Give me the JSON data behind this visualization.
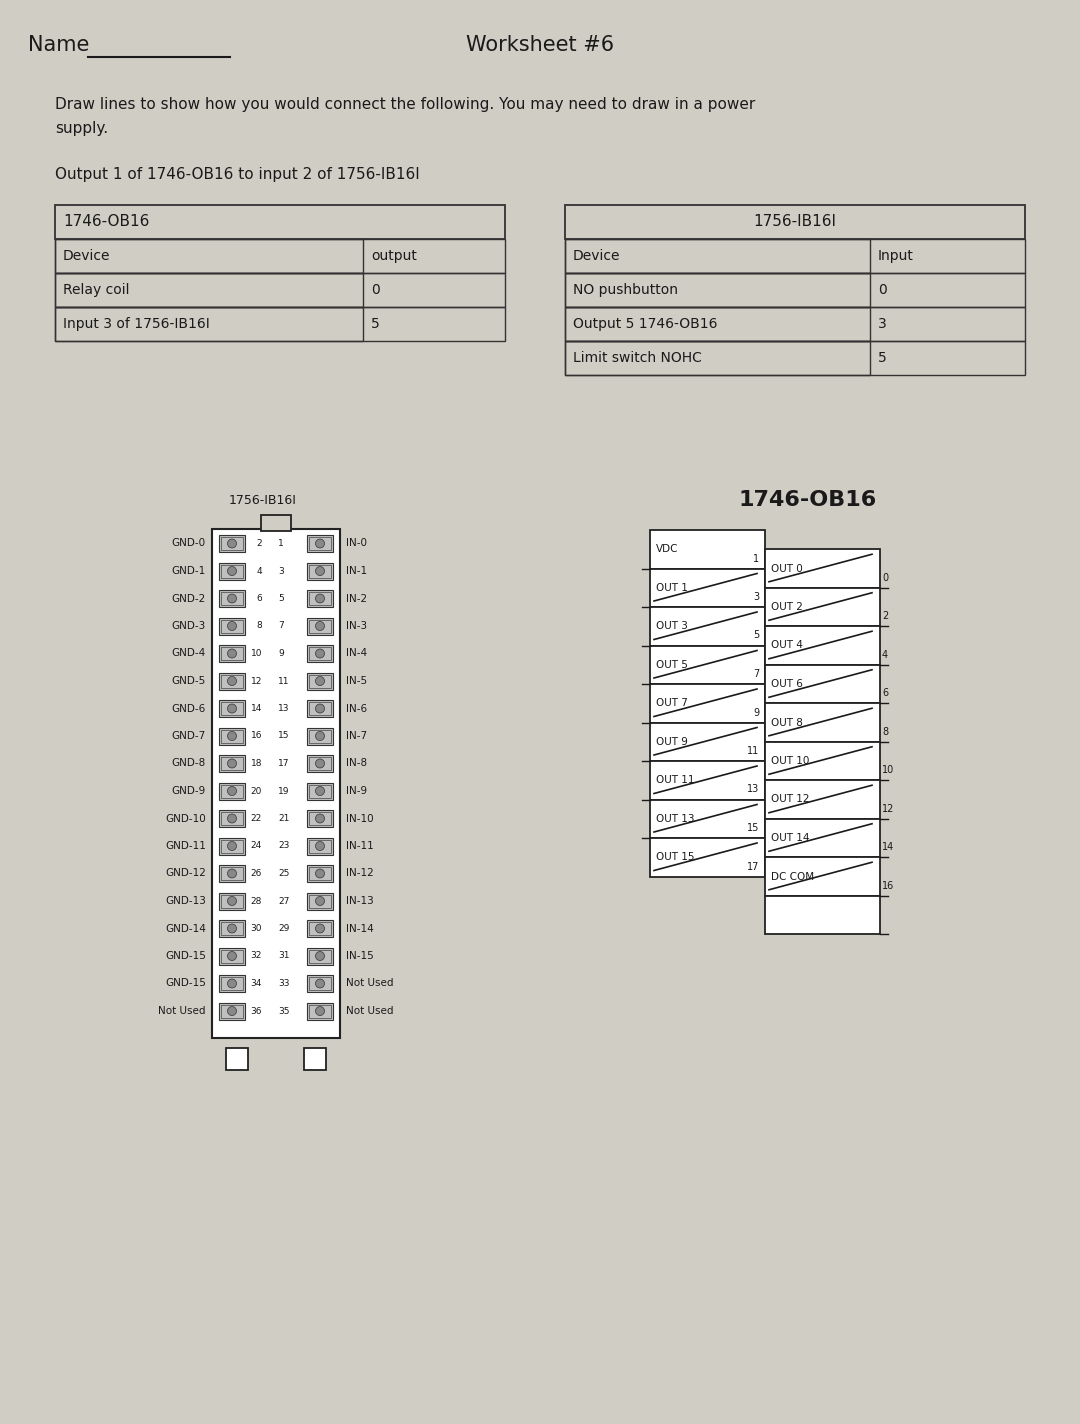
{
  "bg_color": "#d0cdc5",
  "title": "Worksheet #6",
  "name_label": "Name",
  "instruction_line1": "Draw lines to show how you would connect the following. You may need to draw in a power",
  "instruction_line2": "supply.",
  "task": "Output 1 of 1746-OB16 to input 2 of 1756-IB16I",
  "table1_title": "1746-OB16",
  "table1_col1": "Device",
  "table1_col2": "output",
  "table1_rows": [
    [
      "Relay coil",
      "0"
    ],
    [
      "Input 3 of 1756-IB16I",
      "5"
    ]
  ],
  "table2_title": "1756-IB16I",
  "table2_col1": "Device",
  "table2_col2": "Input",
  "table2_rows": [
    [
      "NO pushbutton",
      "0"
    ],
    [
      "Output 5 1746-OB16",
      "3"
    ],
    [
      "Limit switch NOHC",
      "5"
    ]
  ],
  "diag1_title": "1756-IB16I",
  "diag2_title": "1746-OB16",
  "gnd_labels": [
    "GND-0",
    "GND-1",
    "GND-2",
    "GND-3",
    "GND-4",
    "GND-5",
    "GND-6",
    "GND-7",
    "GND-8",
    "GND-9",
    "GND-10",
    "GND-11",
    "GND-12",
    "GND-13",
    "GND-14",
    "GND-15",
    "GND-15",
    "Not Used"
  ],
  "in_labels": [
    "IN-0",
    "IN-1",
    "IN-2",
    "IN-3",
    "IN-4",
    "IN-5",
    "IN-6",
    "IN-7",
    "IN-8",
    "IN-9",
    "IN-10",
    "IN-11",
    "IN-12",
    "IN-13",
    "IN-14",
    "IN-15",
    "Not Used",
    "Not Used"
  ],
  "pin_left": [
    "2",
    "4",
    "6",
    "8",
    "10",
    "12",
    "14",
    "16",
    "18",
    "20",
    "22",
    "24",
    "26",
    "28",
    "30",
    "32",
    "34",
    "36"
  ],
  "pin_right": [
    "1",
    "3",
    "5",
    "7",
    "9",
    "11",
    "13",
    "15",
    "17",
    "19",
    "21",
    "23",
    "25",
    "27",
    "29",
    "31",
    "33",
    "35"
  ],
  "ob16_left_labels": [
    "VDC",
    "OUT 1",
    "OUT 3",
    "OUT 5",
    "OUT 7",
    "OUT 9",
    "OUT 11",
    "OUT 13",
    "OUT 15"
  ],
  "ob16_right_labels": [
    "OUT 0",
    "OUT 2",
    "OUT 4",
    "OUT 6",
    "OUT 8",
    "OUT 10",
    "OUT 12",
    "OUT 14",
    "DC COM"
  ],
  "ob16_mid_nums": [
    "1",
    "3",
    "5",
    "7",
    "9",
    "11",
    "13",
    "15",
    "17"
  ],
  "ob16_right_nums": [
    "0",
    "2",
    "4",
    "6",
    "8",
    "10",
    "12",
    "14",
    "16"
  ]
}
